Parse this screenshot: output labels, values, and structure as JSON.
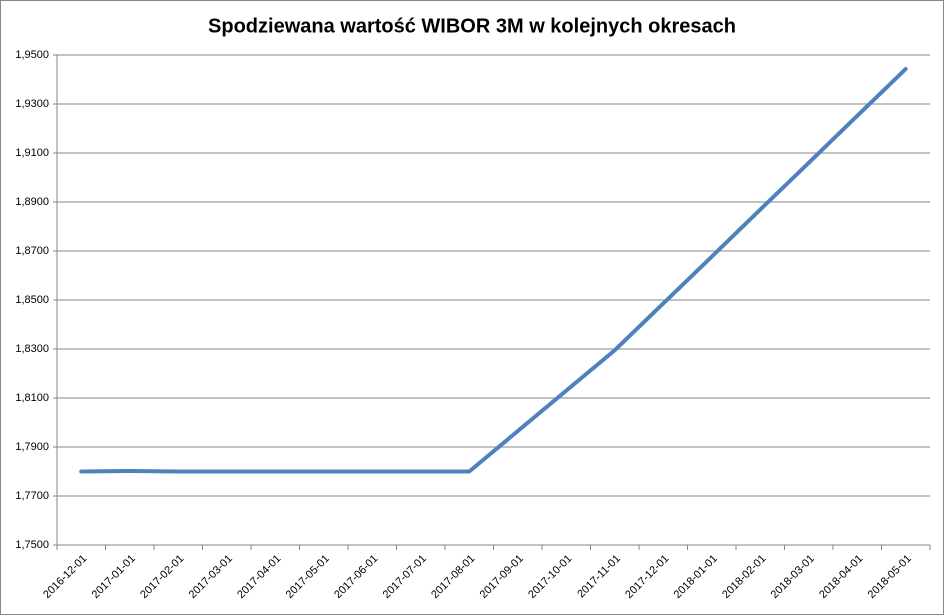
{
  "chart_data": {
    "type": "line",
    "title": "Spodziewana wartość WIBOR 3M w kolejnych okresach",
    "categories": [
      "2016-12-01",
      "2017-01-01",
      "2017-02-01",
      "2017-03-01",
      "2017-04-01",
      "2017-05-01",
      "2017-06-01",
      "2017-07-01",
      "2017-08-01",
      "2017-09-01",
      "2017-10-01",
      "2017-11-01",
      "2017-12-01",
      "2018-01-01",
      "2018-02-01",
      "2018-03-01",
      "2018-04-01",
      "2018-05-01"
    ],
    "series": [
      {
        "color": "#4f81bd",
        "values": [
          1.78,
          1.7802,
          1.78,
          1.78,
          1.78,
          1.78,
          1.78,
          1.78,
          1.78,
          1.7965,
          1.813,
          1.8295,
          1.8486,
          1.8677,
          1.8869,
          1.906,
          1.9252,
          1.9443
        ]
      }
    ],
    "ylim": [
      1.75,
      1.95
    ],
    "yticks": [
      {
        "value": 1.75,
        "label": "1,7500"
      },
      {
        "value": 1.77,
        "label": "1,7700"
      },
      {
        "value": 1.79,
        "label": "1,7900"
      },
      {
        "value": 1.81,
        "label": "1,8100"
      },
      {
        "value": 1.83,
        "label": "1,8300"
      },
      {
        "value": 1.85,
        "label": "1,8500"
      },
      {
        "value": 1.87,
        "label": "1,8700"
      },
      {
        "value": 1.89,
        "label": "1,8900"
      },
      {
        "value": 1.91,
        "label": "1,9100"
      },
      {
        "value": 1.93,
        "label": "1,9300"
      },
      {
        "value": 1.95,
        "label": "1,9500"
      }
    ],
    "grid": true
  }
}
